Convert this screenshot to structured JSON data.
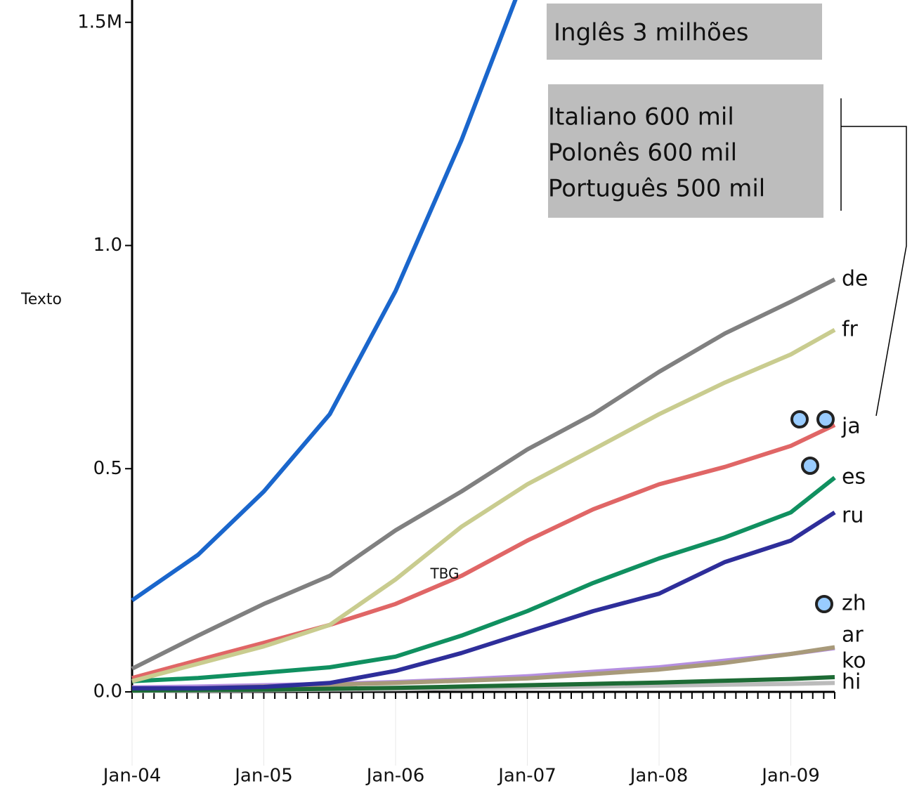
{
  "chart_data": {
    "type": "line",
    "y_label": "Texto",
    "annotations": [
      "Inglês 3 milhões",
      "Italiano 600 mil",
      "Polonês 600 mil",
      "Português 500 mil",
      "TBG"
    ],
    "x": [
      "2004-01",
      "2004-07",
      "2005-01",
      "2005-07",
      "2006-01",
      "2006-07",
      "2007-01",
      "2007-07",
      "2008-01",
      "2008-07",
      "2009-01",
      "2009-05"
    ],
    "xlim": [
      "2004-01",
      "2009-05"
    ],
    "xticks": [
      {
        "value": "2004-01",
        "label": "Jan-04"
      },
      {
        "value": "2005-01",
        "label": "Jan-05"
      },
      {
        "value": "2006-01",
        "label": "Jan-06"
      },
      {
        "value": "2007-01",
        "label": "Jan-07"
      },
      {
        "value": "2008-01",
        "label": "Jan-08"
      },
      {
        "value": "2009-01",
        "label": "Jan-09"
      }
    ],
    "ylim": [
      0,
      1.55
    ],
    "yticks": [
      {
        "value": 0,
        "label": "0.0"
      },
      0.5,
      {
        "value": 1,
        "label": "1.0"
      },
      {
        "value": 1.5,
        "label": "1.5M"
      }
    ],
    "series": [
      {
        "color": "#1a66cc",
        "values": [
          0.205,
          0.307,
          0.449,
          0.622,
          0.898,
          1.236,
          1.62,
          null,
          null,
          null,
          null,
          null
        ]
      },
      {
        "name": "de",
        "color": "#808080",
        "values": [
          0.052,
          0.126,
          0.197,
          0.26,
          0.362,
          0.449,
          0.543,
          0.622,
          0.717,
          0.803,
          0.874,
          0.924
        ]
      },
      {
        "name": "fr",
        "color": "#c9cc8f",
        "values": [
          0.024,
          0.063,
          0.102,
          0.15,
          0.252,
          0.37,
          0.465,
          0.543,
          0.622,
          0.693,
          0.756,
          0.811
        ]
      },
      {
        "name": "ja",
        "color": "#e06666",
        "values": [
          0.031,
          0.071,
          0.11,
          0.15,
          0.197,
          0.26,
          0.339,
          0.409,
          0.465,
          0.504,
          0.551,
          0.598
        ]
      },
      {
        "name": "es",
        "color": "#109060",
        "values": [
          0.024,
          0.031,
          0.043,
          0.055,
          0.079,
          0.126,
          0.181,
          0.244,
          0.299,
          0.346,
          0.402,
          0.48
        ]
      },
      {
        "name": "ru",
        "color": "#2e2e9a",
        "values": [
          0.008,
          0.008,
          0.011,
          0.02,
          0.047,
          0.087,
          0.134,
          0.181,
          0.22,
          0.291,
          0.339,
          0.402
        ]
      },
      {
        "name": "zh",
        "color": "#1d6b35",
        "values": [
          0.003,
          0.004,
          0.005,
          0.007,
          0.009,
          0.012,
          0.015,
          0.018,
          0.021,
          0.025,
          0.029,
          0.033
        ]
      },
      {
        "name": "ar",
        "color": "#a89a7a",
        "values": [
          0.005,
          0.008,
          0.012,
          0.016,
          0.02,
          0.025,
          0.03,
          0.04,
          0.05,
          0.065,
          0.085,
          0.1
        ]
      },
      {
        "name": "ko",
        "color": "#b58fe0",
        "values": [
          0.01,
          0.012,
          0.015,
          0.018,
          0.022,
          0.028,
          0.035,
          0.045,
          0.055,
          0.07,
          0.085,
          0.098
        ]
      },
      {
        "name": "hi",
        "color": "#bbbbbb",
        "values": [
          0.002,
          0.003,
          0.004,
          0.005,
          0.006,
          0.008,
          0.01,
          0.012,
          0.014,
          0.016,
          0.018,
          0.02
        ]
      }
    ]
  }
}
